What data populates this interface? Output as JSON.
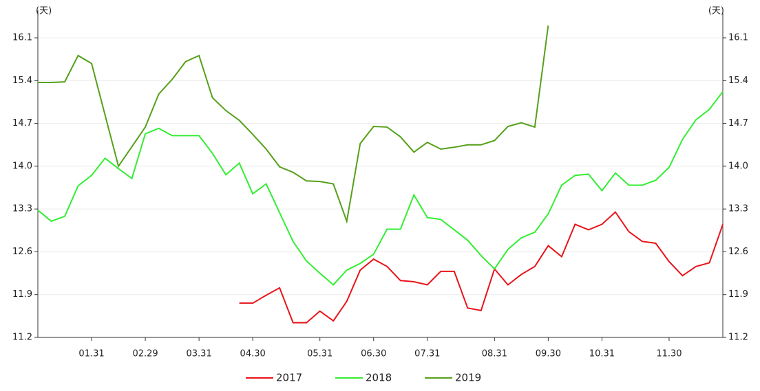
{
  "chart_data": {
    "type": "line",
    "y_label": "(天)",
    "y2_label": "(天)",
    "categories": [
      null,
      null,
      null,
      null,
      "01.31",
      null,
      null,
      null,
      "02.29",
      null,
      null,
      null,
      "03.31",
      null,
      null,
      null,
      "04.30",
      null,
      null,
      null,
      null,
      "05.31",
      null,
      null,
      null,
      "06.30",
      null,
      null,
      null,
      "07.31",
      null,
      null,
      null,
      null,
      "08.31",
      null,
      null,
      null,
      "09.30",
      null,
      null,
      null,
      "10.31",
      null,
      null,
      null,
      null,
      "11.30",
      null,
      null,
      null,
      null
    ],
    "ylim": [
      11.2,
      16.55
    ],
    "yticks": [
      11.2,
      11.9,
      12.6,
      13.3,
      {
        "value": 14,
        "label": "14.0"
      },
      14.7,
      15.4,
      16.1
    ],
    "y2lim": [
      11.2,
      16.55
    ],
    "y2ticks": [
      11.2,
      11.9,
      12.6,
      13.3,
      {
        "value": 14,
        "label": "14.0"
      },
      14.7,
      15.4,
      16.1
    ],
    "grid": true,
    "series": [
      {
        "name": "2017",
        "color": "#e8141a",
        "values": [
          null,
          null,
          null,
          null,
          null,
          null,
          null,
          null,
          null,
          null,
          null,
          null,
          null,
          null,
          null,
          11.76,
          11.76,
          11.89,
          12.01,
          11.44,
          11.44,
          11.63,
          11.47,
          11.79,
          12.3,
          12.48,
          12.36,
          12.13,
          12.11,
          12.06,
          12.28,
          12.28,
          11.68,
          11.64,
          12.32,
          12.06,
          12.23,
          12.36,
          12.7,
          12.52,
          13.05,
          12.96,
          13.05,
          13.25,
          12.93,
          12.77,
          12.74,
          12.44,
          12.21,
          12.36,
          12.42,
          13.05
        ]
      },
      {
        "name": "2018",
        "color": "#33ee33",
        "values": [
          13.28,
          13.1,
          13.18,
          13.68,
          13.85,
          14.13,
          13.96,
          13.8,
          14.53,
          14.62,
          14.5,
          14.5,
          14.5,
          14.21,
          13.86,
          14.05,
          13.55,
          13.71,
          13.24,
          12.77,
          12.45,
          12.25,
          12.06,
          12.3,
          12.41,
          12.56,
          12.97,
          12.97,
          13.53,
          13.16,
          13.13,
          12.96,
          12.79,
          12.54,
          12.32,
          12.64,
          12.83,
          12.92,
          13.22,
          13.69,
          13.85,
          13.87,
          13.6,
          13.89,
          13.69,
          13.69,
          13.77,
          13.98,
          14.44,
          14.76,
          14.93,
          15.22
        ]
      },
      {
        "name": "2019",
        "color": "#55a019",
        "values": [
          15.37,
          15.37,
          15.38,
          15.81,
          15.68,
          14.84,
          14.0,
          14.32,
          14.64,
          15.18,
          15.42,
          15.71,
          15.81,
          15.12,
          14.91,
          14.75,
          14.52,
          14.28,
          13.99,
          13.9,
          13.76,
          13.75,
          13.71,
          13.1,
          14.37,
          14.65,
          14.64,
          14.48,
          14.23,
          14.39,
          14.28,
          14.31,
          14.35,
          14.35,
          14.42,
          14.65,
          14.71,
          14.64,
          16.3,
          null,
          null,
          null,
          null,
          null,
          null,
          null,
          null,
          null,
          null,
          null,
          null,
          null
        ]
      }
    ]
  }
}
